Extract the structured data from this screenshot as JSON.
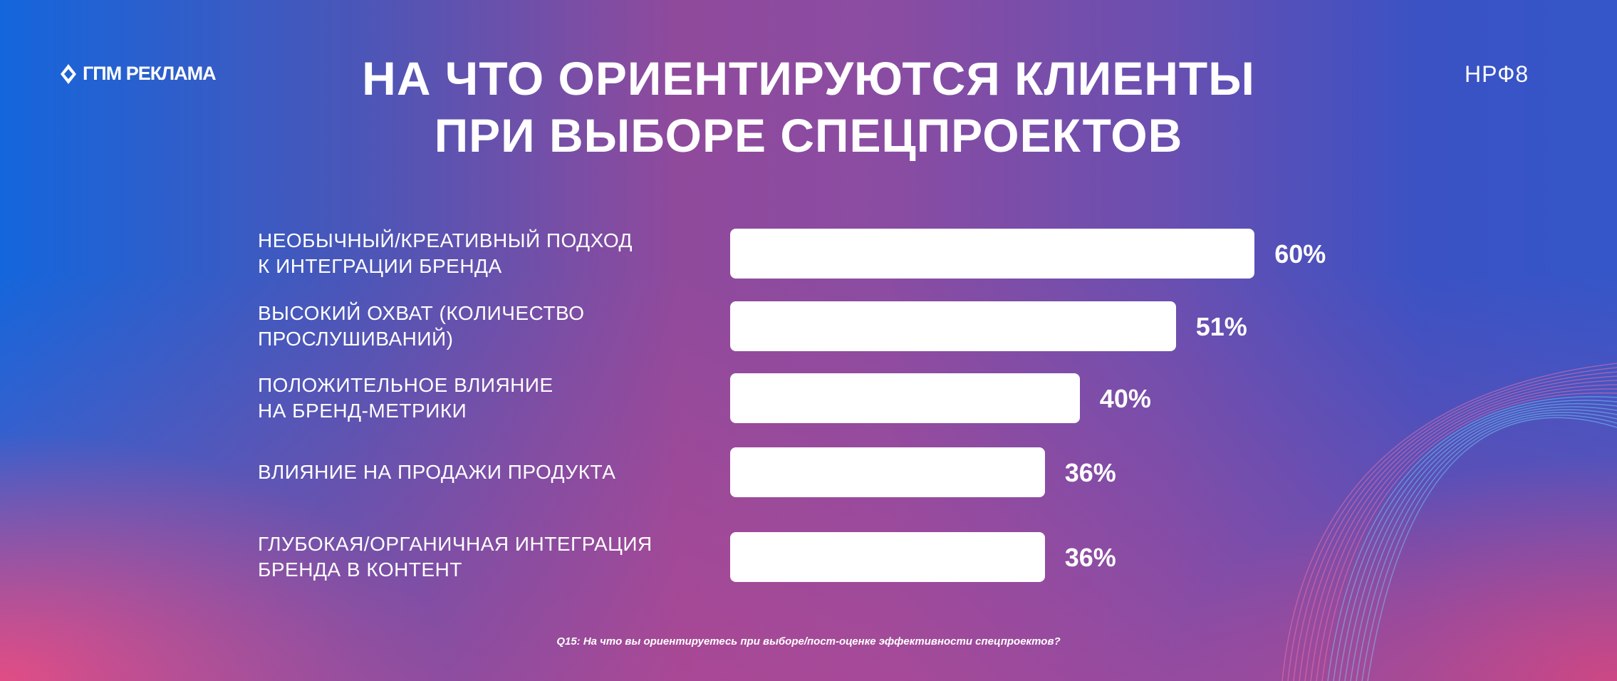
{
  "logos": {
    "left": "ГПМ РЕКЛАМА",
    "right": "НРФ8"
  },
  "chart_data": {
    "type": "bar",
    "orientation": "horizontal",
    "title": "НА ЧТО ОРИЕНТИРУЮТСЯ КЛИЕНТЫ ПРИ ВЫБОРЕ СПЕЦПРОЕКТОВ",
    "title_lines": [
      "НА ЧТО ОРИЕНТИРУЮТСЯ КЛИЕНТЫ",
      "ПРИ ВЫБОРЕ СПЕЦПРОЕКТОВ"
    ],
    "categories": [
      [
        "НЕОБЫЧНЫЙ/КРЕАТИВНЫЙ ПОДХОД",
        "К ИНТЕГРАЦИИ БРЕНДА"
      ],
      [
        "ВЫСОКИЙ ОХВАТ (КОЛИЧЕСТВО",
        "ПРОСЛУШИВАНИЙ)"
      ],
      [
        "ПОЛОЖИТЕЛЬНОЕ ВЛИЯНИЕ",
        "НА БРЕНД-МЕТРИКИ"
      ],
      [
        "ВЛИЯНИЕ НА ПРОДАЖИ ПРОДУКТА"
      ],
      [
        "ГЛУБОКАЯ/ОРГАНИЧНАЯ ИНТЕГРАЦИЯ",
        "БРЕНДА В КОНТЕНТ"
      ]
    ],
    "values": [
      60,
      51,
      40,
      36,
      36
    ],
    "data_labels": [
      "60%",
      "51%",
      "40%",
      "36%",
      "36%"
    ],
    "bar_color": "#ffffff",
    "footnote": "Q15: На что вы ориентируетесь при выборе/пост-оценке эффективности спецпроектов?"
  }
}
